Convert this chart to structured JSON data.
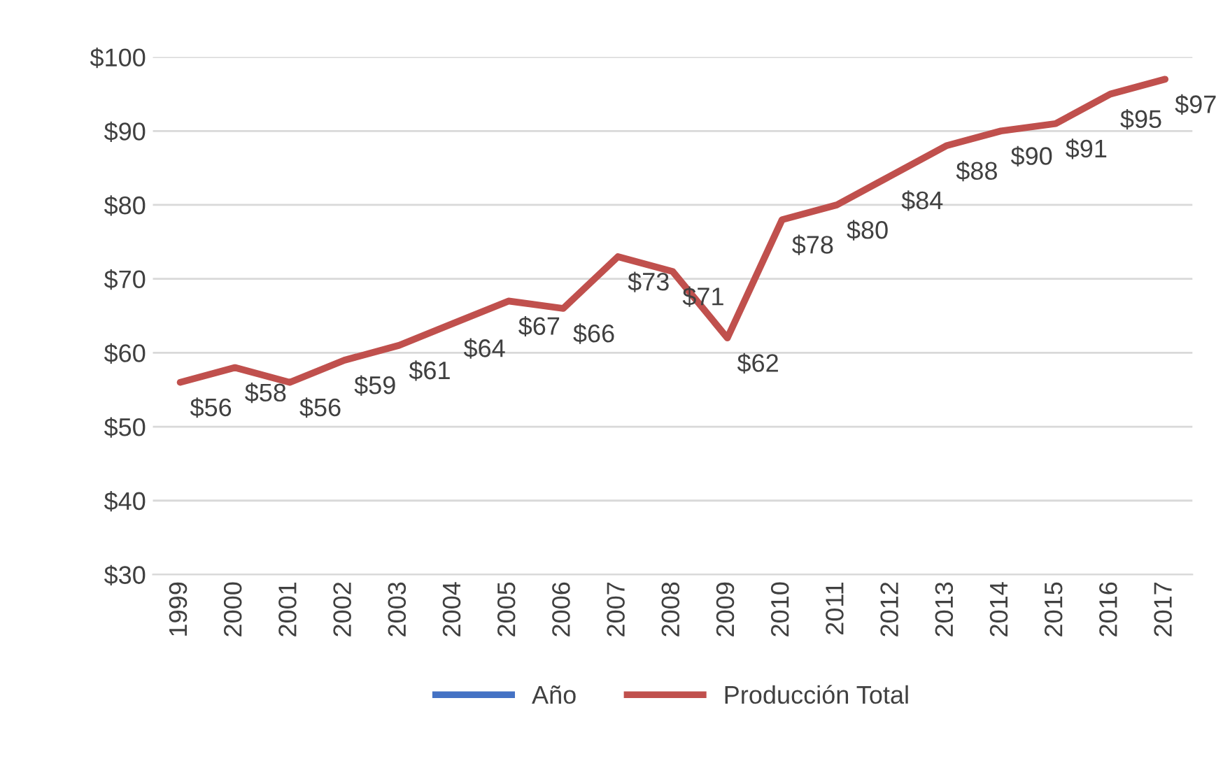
{
  "chart_data": {
    "type": "line",
    "categories": [
      "1999",
      "2000",
      "2001",
      "2002",
      "2003",
      "2004",
      "2005",
      "2006",
      "2007",
      "2008",
      "2009",
      "2010",
      "2011",
      "2012",
      "2013",
      "2014",
      "2015",
      "2016",
      "2017"
    ],
    "series": [
      {
        "name": "Año",
        "color": "#4472c4",
        "values": [
          null,
          null,
          null,
          null,
          null,
          null,
          null,
          null,
          null,
          null,
          null,
          null,
          null,
          null,
          null,
          null,
          null,
          null,
          null
        ]
      },
      {
        "name": "Producción Total",
        "color": "#c0504d",
        "values": [
          56,
          58,
          56,
          59,
          61,
          64,
          67,
          66,
          73,
          71,
          62,
          78,
          80,
          84,
          88,
          90,
          91,
          95,
          97
        ],
        "value_labels": [
          "$56",
          "$58",
          "$56",
          "$59",
          "$61",
          "$64",
          "$67",
          "$66",
          "$73",
          "$71",
          "$62",
          "$78",
          "$80",
          "$84",
          "$88",
          "$90",
          "$91",
          "$95",
          "$97"
        ]
      }
    ],
    "ylim": [
      30,
      100
    ],
    "yticks": [
      {
        "value": 30,
        "label": "$30"
      },
      {
        "value": 40,
        "label": "$40"
      },
      {
        "value": 50,
        "label": "$50"
      },
      {
        "value": 60,
        "label": "$60"
      },
      {
        "value": 70,
        "label": "$70"
      },
      {
        "value": 80,
        "label": "$80"
      },
      {
        "value": 90,
        "label": "$90"
      },
      {
        "value": 100,
        "label": "$100"
      }
    ],
    "grid": "y",
    "legend": "bottom",
    "marker": "none",
    "line_style": "solid"
  }
}
